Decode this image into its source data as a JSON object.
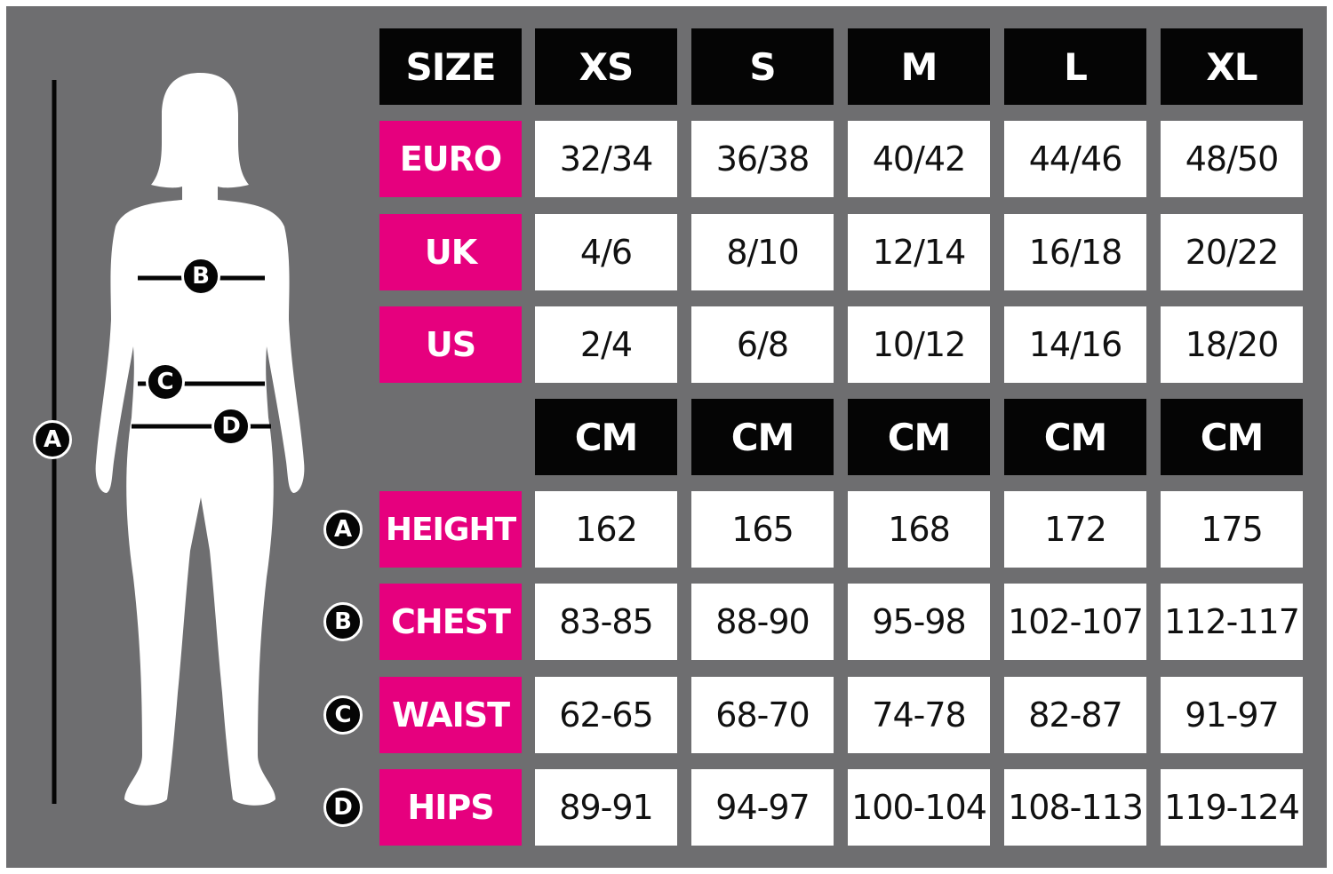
{
  "colors": {
    "background": "#6e6e70",
    "header": "#050505",
    "label": "#e6007e",
    "cell": "#ffffff"
  },
  "figure": {
    "icon": "female-body-silhouette",
    "markers": [
      "A",
      "B",
      "C",
      "D"
    ]
  },
  "table": {
    "header": [
      "SIZE",
      "XS",
      "S",
      "M",
      "L",
      "XL"
    ],
    "rows": [
      {
        "label": "EURO",
        "values": [
          "32/34",
          "36/38",
          "40/42",
          "44/46",
          "48/50"
        ]
      },
      {
        "label": "UK",
        "values": [
          "4/6",
          "8/10",
          "12/14",
          "16/18",
          "20/22"
        ]
      },
      {
        "label": "US",
        "values": [
          "2/4",
          "6/8",
          "10/12",
          "14/16",
          "18/20"
        ]
      }
    ],
    "unit_header": [
      "CM",
      "CM",
      "CM",
      "CM",
      "CM"
    ],
    "measurements": [
      {
        "marker": "A",
        "label": "HEIGHT",
        "values": [
          "162",
          "165",
          "168",
          "172",
          "175"
        ]
      },
      {
        "marker": "B",
        "label": "CHEST",
        "values": [
          "83-85",
          "88-90",
          "95-98",
          "102-107",
          "112-117"
        ]
      },
      {
        "marker": "C",
        "label": "WAIST",
        "values": [
          "62-65",
          "68-70",
          "74-78",
          "82-87",
          "91-97"
        ]
      },
      {
        "marker": "D",
        "label": "HIPS",
        "values": [
          "89-91",
          "94-97",
          "100-104",
          "108-113",
          "119-124"
        ]
      }
    ]
  }
}
